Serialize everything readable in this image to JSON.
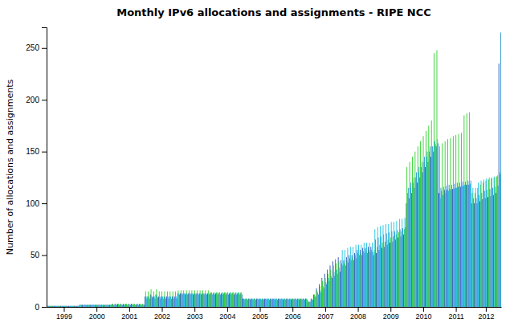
{
  "chart_data": {
    "type": "bar",
    "title": "Monthly IPv6 allocations and assignments - RIPE NCC",
    "ylabel": "Number of allocations and assignments",
    "ylim": [
      0,
      270
    ],
    "yticks": [
      0,
      50,
      100,
      150,
      200,
      250
    ],
    "grid": false,
    "categories": [
      null,
      null,
      null,
      null,
      null,
      null,
      "1999",
      null,
      null,
      null,
      null,
      null,
      null,
      null,
      null,
      null,
      null,
      null,
      "2000",
      null,
      null,
      null,
      null,
      null,
      null,
      null,
      null,
      null,
      null,
      null,
      "2001",
      null,
      null,
      null,
      null,
      null,
      null,
      null,
      null,
      null,
      null,
      null,
      "2002",
      null,
      null,
      null,
      null,
      null,
      null,
      null,
      null,
      null,
      null,
      null,
      "2003",
      null,
      null,
      null,
      null,
      null,
      null,
      null,
      null,
      null,
      null,
      null,
      "2004",
      null,
      null,
      null,
      null,
      null,
      null,
      null,
      null,
      null,
      null,
      null,
      "2005",
      null,
      null,
      null,
      null,
      null,
      null,
      null,
      null,
      null,
      null,
      null,
      "2006",
      null,
      null,
      null,
      null,
      null,
      null,
      null,
      null,
      null,
      null,
      null,
      "2007",
      null,
      null,
      null,
      null,
      null,
      null,
      null,
      null,
      null,
      null,
      null,
      "2008",
      null,
      null,
      null,
      null,
      null,
      null,
      null,
      null,
      null,
      null,
      null,
      "2009",
      null,
      null,
      null,
      null,
      null,
      null,
      null,
      null,
      null,
      null,
      null,
      "2010",
      null,
      null,
      null,
      null,
      null,
      null,
      null,
      null,
      null,
      null,
      null,
      "2011",
      null,
      null,
      null,
      null,
      null,
      null,
      null,
      null,
      null,
      null,
      "2012",
      null,
      null,
      null,
      null,
      null
    ],
    "series": [
      {
        "color": "#1040b0",
        "values": [
          1,
          1,
          1,
          1,
          1,
          1,
          1,
          1,
          1,
          1,
          1,
          1,
          2,
          2,
          2,
          2,
          2,
          2,
          2,
          2,
          2,
          2,
          2,
          2,
          3,
          3,
          3,
          3,
          3,
          3,
          3,
          3,
          3,
          3,
          3,
          3,
          10,
          10,
          12,
          10,
          12,
          10,
          10,
          10,
          10,
          10,
          10,
          10,
          13,
          13,
          13,
          13,
          13,
          13,
          13,
          13,
          13,
          13,
          13,
          13,
          13,
          13,
          13,
          13,
          13,
          13,
          13,
          13,
          13,
          13,
          13,
          13,
          8,
          8,
          8,
          8,
          8,
          8,
          8,
          8,
          8,
          8,
          8,
          8,
          8,
          8,
          8,
          8,
          8,
          8,
          8,
          8,
          8,
          8,
          8,
          8,
          5,
          8,
          12,
          18,
          22,
          28,
          32,
          36,
          40,
          44,
          46,
          48,
          45,
          45,
          48,
          50,
          50,
          52,
          55,
          55,
          57,
          57,
          58,
          58,
          50,
          52,
          55,
          57,
          58,
          60,
          62,
          63,
          65,
          67,
          68,
          70,
          100,
          105,
          110,
          115,
          120,
          125,
          130,
          135,
          140,
          145,
          150,
          155,
          110,
          112,
          113,
          113,
          114,
          114,
          115,
          116,
          116,
          117,
          118,
          118,
          100,
          100,
          100,
          102,
          104,
          105,
          106,
          107,
          108,
          110,
          235
        ]
      },
      {
        "color": "#11cc11",
        "values": [
          1,
          1,
          1,
          1,
          1,
          1,
          1,
          1,
          1,
          1,
          1,
          1,
          2,
          2,
          2,
          2,
          2,
          2,
          2,
          2,
          2,
          2,
          2,
          2,
          3,
          3,
          3,
          3,
          3,
          3,
          3,
          3,
          3,
          3,
          3,
          3,
          15,
          15,
          17,
          15,
          17,
          15,
          15,
          15,
          15,
          15,
          15,
          15,
          16,
          16,
          16,
          16,
          16,
          16,
          16,
          16,
          16,
          16,
          16,
          16,
          14,
          14,
          14,
          14,
          14,
          14,
          14,
          14,
          14,
          14,
          14,
          14,
          8,
          8,
          8,
          8,
          8,
          8,
          8,
          8,
          8,
          8,
          8,
          8,
          8,
          8,
          8,
          8,
          8,
          8,
          8,
          8,
          8,
          8,
          8,
          8,
          5,
          8,
          12,
          16,
          20,
          25,
          28,
          32,
          36,
          40,
          42,
          44,
          42,
          42,
          45,
          47,
          47,
          50,
          52,
          52,
          54,
          54,
          55,
          55,
          55,
          58,
          60,
          62,
          63,
          65,
          67,
          68,
          70,
          72,
          73,
          75,
          135,
          140,
          145,
          150,
          155,
          160,
          165,
          170,
          175,
          180,
          245,
          248,
          155,
          158,
          160,
          162,
          163,
          165,
          166,
          167,
          168,
          185,
          187,
          188,
          110,
          110,
          115,
          118,
          120,
          122,
          123,
          124,
          125,
          126,
          130
        ]
      },
      {
        "color": "#00bbdd",
        "values": [
          1,
          1,
          1,
          1,
          1,
          1,
          1,
          1,
          1,
          1,
          1,
          1,
          2,
          2,
          2,
          2,
          2,
          2,
          2,
          2,
          2,
          2,
          2,
          2,
          2,
          2,
          2,
          2,
          2,
          2,
          2,
          2,
          2,
          2,
          2,
          2,
          10,
          10,
          11,
          10,
          11,
          10,
          10,
          10,
          10,
          10,
          10,
          10,
          13,
          13,
          13,
          13,
          13,
          13,
          13,
          13,
          13,
          13,
          13,
          13,
          14,
          14,
          14,
          14,
          14,
          14,
          14,
          14,
          14,
          14,
          14,
          14,
          8,
          8,
          8,
          8,
          8,
          8,
          8,
          8,
          8,
          8,
          8,
          8,
          8,
          8,
          8,
          8,
          8,
          8,
          8,
          8,
          8,
          8,
          8,
          8,
          5,
          7,
          10,
          14,
          16,
          20,
          24,
          28,
          30,
          34,
          36,
          38,
          55,
          55,
          57,
          58,
          58,
          60,
          60,
          60,
          62,
          62,
          62,
          62,
          75,
          77,
          78,
          79,
          80,
          80,
          82,
          82,
          83,
          85,
          85,
          86,
          110,
          115,
          120,
          125,
          130,
          135,
          140,
          145,
          150,
          155,
          160,
          162,
          105,
          108,
          110,
          112,
          113,
          114,
          115,
          116,
          117,
          118,
          118,
          119,
          115,
          115,
          120,
          122,
          123,
          124,
          125,
          125,
          126,
          127,
          128
        ]
      },
      {
        "color": "#1188cc",
        "values": [
          1,
          1,
          1,
          1,
          1,
          1,
          1,
          1,
          1,
          1,
          1,
          1,
          2,
          2,
          2,
          2,
          2,
          2,
          2,
          2,
          2,
          2,
          2,
          2,
          2,
          2,
          2,
          2,
          2,
          2,
          2,
          2,
          2,
          2,
          2,
          2,
          8,
          8,
          9,
          8,
          9,
          8,
          8,
          8,
          8,
          8,
          8,
          8,
          12,
          12,
          12,
          12,
          12,
          12,
          12,
          12,
          12,
          12,
          12,
          12,
          12,
          12,
          12,
          12,
          12,
          12,
          12,
          12,
          12,
          12,
          12,
          12,
          7,
          7,
          7,
          7,
          7,
          7,
          7,
          7,
          7,
          7,
          7,
          7,
          7,
          7,
          7,
          7,
          7,
          7,
          7,
          7,
          7,
          7,
          7,
          7,
          5,
          7,
          10,
          12,
          14,
          18,
          22,
          25,
          28,
          30,
          32,
          34,
          40,
          40,
          43,
          45,
          45,
          47,
          50,
          50,
          52,
          52,
          53,
          53,
          65,
          67,
          68,
          70,
          71,
          72,
          73,
          73,
          74,
          75,
          76,
          77,
          115,
          120,
          125,
          130,
          135,
          140,
          145,
          150,
          155,
          155,
          157,
          158,
          115,
          116,
          117,
          118,
          118,
          119,
          120,
          120,
          121,
          121,
          122,
          122,
          105,
          105,
          108,
          110,
          112,
          113,
          114,
          115,
          116,
          117,
          265
        ]
      }
    ]
  }
}
